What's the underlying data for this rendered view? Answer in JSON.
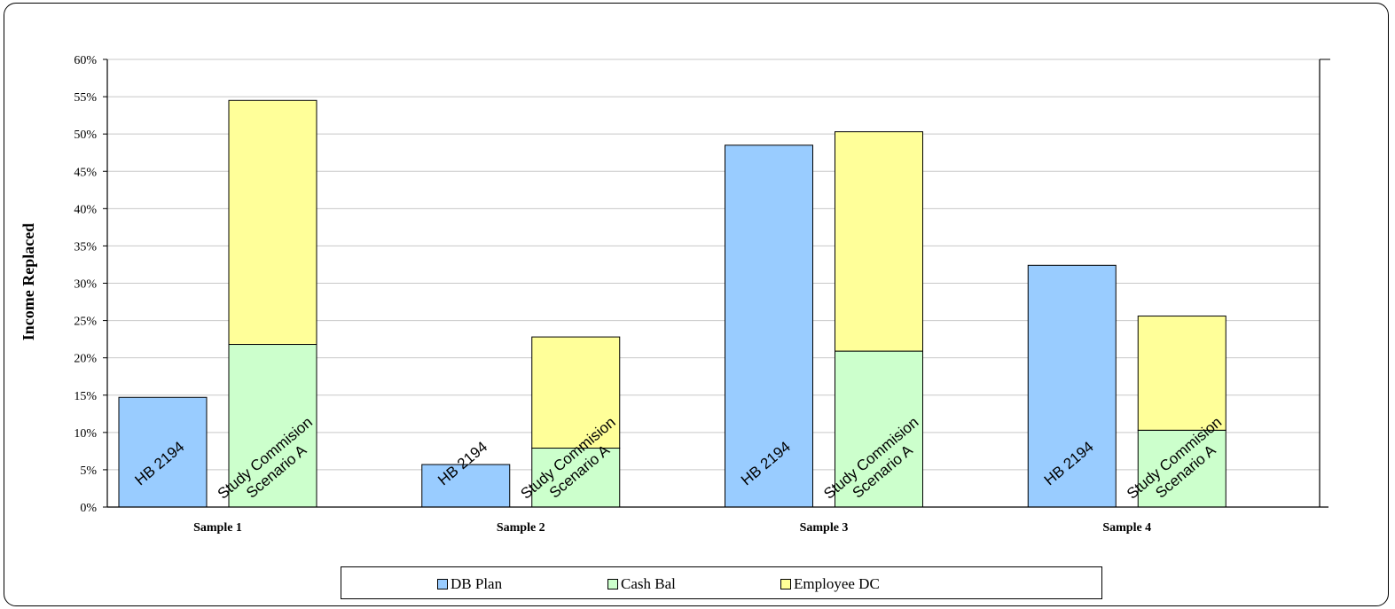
{
  "chart_data": {
    "type": "bar",
    "stacked": true,
    "categories": [
      "Sample 1",
      "Sample 2",
      "Sample 3",
      "Sample 4"
    ],
    "bar_labels": [
      "HB 2194",
      "Study Commision Scenario A"
    ],
    "ylabel": "Income Replaced",
    "ylim": [
      0,
      60
    ],
    "yticks": [
      "0%",
      "5%",
      "10%",
      "15%",
      "20%",
      "25%",
      "30%",
      "35%",
      "40%",
      "45%",
      "50%",
      "55%",
      "60%"
    ],
    "grid": true,
    "legend_position": "bottom",
    "series": [
      {
        "name": "DB Plan",
        "color": "#99CCFF",
        "hb2194": [
          14.7,
          5.7,
          48.5,
          32.4
        ],
        "scenario_a": [
          0,
          0,
          0,
          0
        ]
      },
      {
        "name": "Cash Bal",
        "color": "#CCFFCC",
        "hb2194": [
          0,
          0,
          0,
          0
        ],
        "scenario_a": [
          21.8,
          7.9,
          20.9,
          10.3
        ]
      },
      {
        "name": "Employee DC",
        "color": "#FFFF99",
        "hb2194": [
          0,
          0,
          0,
          0
        ],
        "scenario_a": [
          32.7,
          14.9,
          29.4,
          15.3
        ]
      }
    ]
  }
}
